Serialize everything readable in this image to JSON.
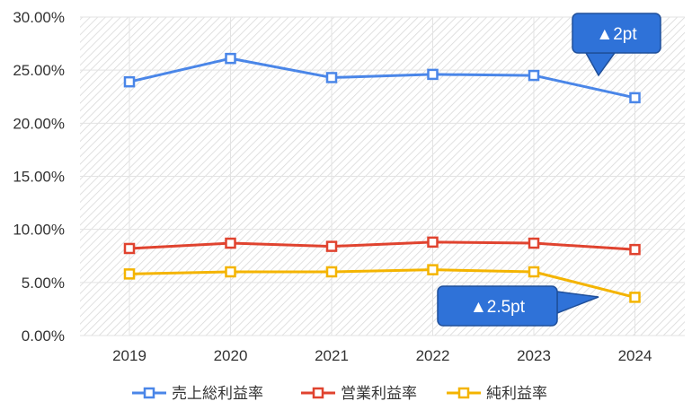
{
  "chart_data": {
    "type": "line",
    "categories": [
      "2019",
      "2020",
      "2021",
      "2022",
      "2023",
      "2024"
    ],
    "series": [
      {
        "name": "売上総利益率",
        "color": "#4a86e8",
        "values": [
          23.9,
          26.1,
          24.3,
          24.6,
          24.5,
          22.4
        ]
      },
      {
        "name": "営業利益率",
        "color": "#e0432f",
        "values": [
          8.2,
          8.7,
          8.4,
          8.8,
          8.7,
          8.1
        ]
      },
      {
        "name": "純利益率",
        "color": "#f4b400",
        "values": [
          5.8,
          6.0,
          6.0,
          6.2,
          6.0,
          3.6
        ]
      }
    ],
    "y_ticks": [
      "0.00%",
      "5.00%",
      "10.00%",
      "15.00%",
      "20.00%",
      "25.00%",
      "30.00%"
    ],
    "ylim": [
      0,
      30
    ],
    "grid": true,
    "legend_position": "bottom",
    "annotations": [
      {
        "text": "▲2pt",
        "series_index": 0,
        "point_index": 5
      },
      {
        "text": "▲2.5pt",
        "series_index": 2,
        "point_index": 5
      }
    ],
    "callout_color": "#2f72d8"
  }
}
